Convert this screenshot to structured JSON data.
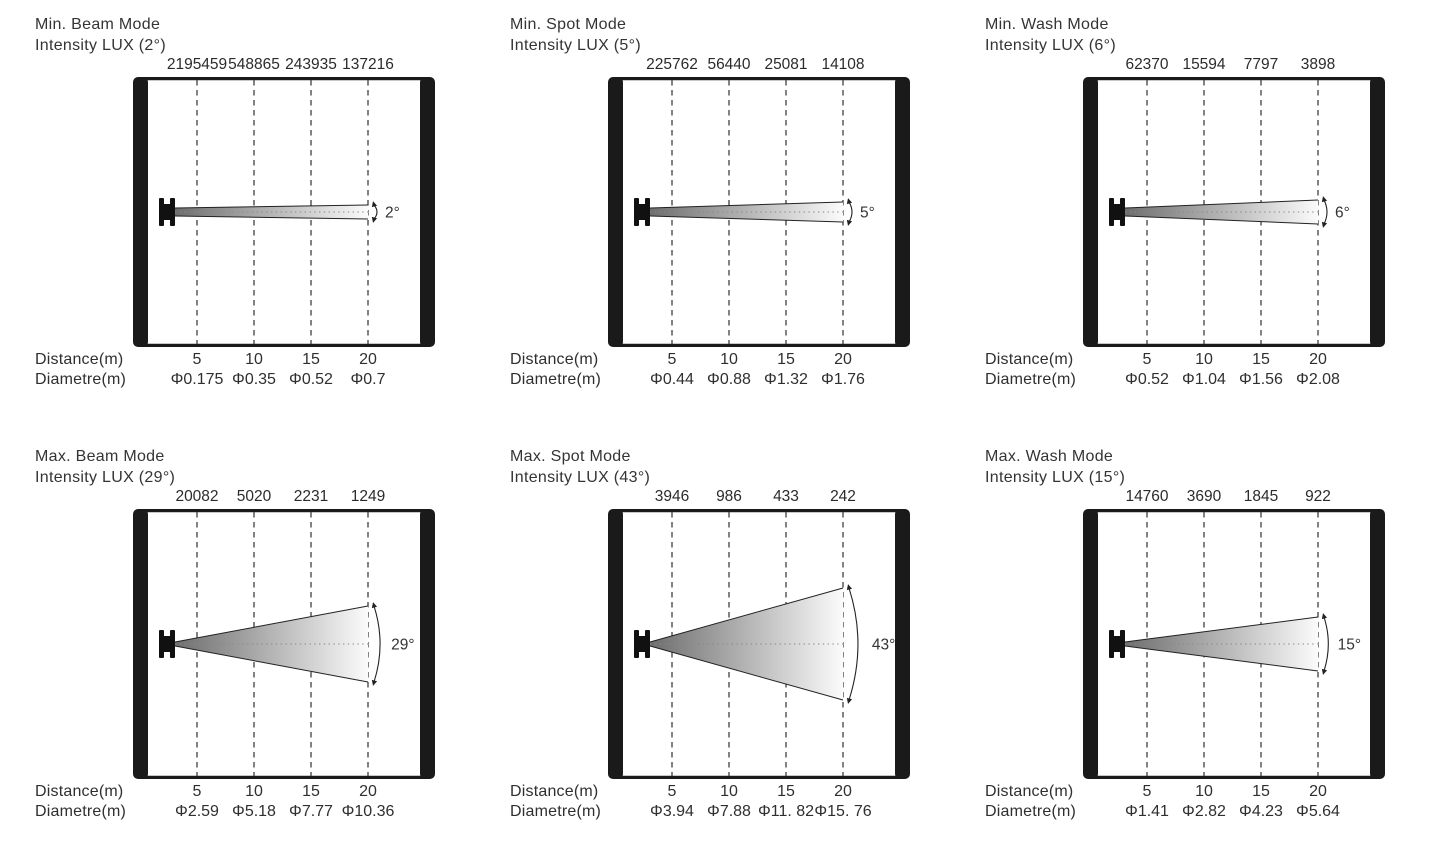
{
  "figure": {
    "description": "Photometric beam diagrams, 6 panels (min/max beam, spot, wash modes)",
    "labels": {
      "distance": "Distance(m)",
      "diametre": "Diametre(m)"
    },
    "colors": {
      "frame": "#1a1a1a",
      "text": "#343434",
      "tick_dash": "#3f3f3f",
      "beam_dark": "#6e6e6e",
      "beam_light": "#fbfbfb",
      "beam_edge": "#222222",
      "centerline": "#888888"
    }
  },
  "panels": [
    {
      "title_line1": "Min. Beam Mode",
      "title_line2": "Intensity LUX (2°)",
      "angle_label": "2°",
      "angle_deg": 2,
      "intensity": [
        "2195459",
        "548865",
        "243935",
        "137216"
      ],
      "distance": [
        "5",
        "10",
        "15",
        "20"
      ],
      "diametre": [
        "Φ0.175",
        "Φ0.35",
        "Φ0.52",
        "Φ0.7"
      ],
      "render": {
        "start_half_height": 4,
        "end_half_height": 7
      }
    },
    {
      "title_line1": "Min. Spot Mode",
      "title_line2": "Intensity LUX (5°)",
      "angle_label": "5°",
      "angle_deg": 5,
      "intensity": [
        "225762",
        "56440",
        "25081",
        "14108"
      ],
      "distance": [
        "5",
        "10",
        "15",
        "20"
      ],
      "diametre": [
        "Φ0.44",
        "Φ0.88",
        "Φ1.32",
        "Φ1.76"
      ],
      "render": {
        "start_half_height": 4,
        "end_half_height": 10
      }
    },
    {
      "title_line1": "Min. Wash Mode",
      "title_line2": "Intensity LUX (6°)",
      "angle_label": "6°",
      "angle_deg": 6,
      "intensity": [
        "62370",
        "15594",
        "7797",
        "3898"
      ],
      "distance": [
        "5",
        "10",
        "15",
        "20"
      ],
      "diametre": [
        "Φ0.52",
        "Φ1.04",
        "Φ1.56",
        "Φ2.08"
      ],
      "render": {
        "start_half_height": 4,
        "end_half_height": 12
      }
    },
    {
      "title_line1": "Max. Beam Mode",
      "title_line2": "Intensity LUX (29°)",
      "angle_label": "29°",
      "angle_deg": 29,
      "intensity": [
        "20082",
        "5020",
        "2231",
        "1249"
      ],
      "distance": [
        "5",
        "10",
        "15",
        "20"
      ],
      "diametre": [
        "Φ2.59",
        "Φ5.18",
        "Φ7.77",
        "Φ10.36"
      ],
      "render": {
        "start_half_height": 2,
        "end_half_height": 38
      }
    },
    {
      "title_line1": "Max. Spot Mode",
      "title_line2": "Intensity LUX (43°)",
      "angle_label": "43°",
      "angle_deg": 43,
      "intensity": [
        "3946",
        "986",
        "433",
        "242"
      ],
      "distance": [
        "5",
        "10",
        "15",
        "20"
      ],
      "diametre": [
        "Φ3.94",
        "Φ7.88",
        "Φ11. 82",
        "Φ15. 76"
      ],
      "render": {
        "start_half_height": 2,
        "end_half_height": 56
      }
    },
    {
      "title_line1": "Max. Wash Mode",
      "title_line2": "Intensity LUX (15°)",
      "angle_label": "15°",
      "angle_deg": 15,
      "intensity": [
        "14760",
        "3690",
        "1845",
        "922"
      ],
      "distance": [
        "5",
        "10",
        "15",
        "20"
      ],
      "diametre": [
        "Φ1.41",
        "Φ2.82",
        "Φ4.23",
        "Φ5.64"
      ],
      "render": {
        "start_half_height": 2,
        "end_half_height": 27
      }
    }
  ],
  "chart_data": [
    {
      "type": "table",
      "title": "Min. Beam Mode Intensity LUX (2°)",
      "x": [
        5,
        10,
        15,
        20
      ],
      "intensity_lux": [
        2195459,
        548865,
        243935,
        137216
      ],
      "diametre_m": [
        0.175,
        0.35,
        0.52,
        0.7
      ],
      "beam_angle_deg": 2
    },
    {
      "type": "table",
      "title": "Min. Spot Mode Intensity LUX (5°)",
      "x": [
        5,
        10,
        15,
        20
      ],
      "intensity_lux": [
        225762,
        56440,
        25081,
        14108
      ],
      "diametre_m": [
        0.44,
        0.88,
        1.32,
        1.76
      ],
      "beam_angle_deg": 5
    },
    {
      "type": "table",
      "title": "Min. Wash Mode Intensity LUX (6°)",
      "x": [
        5,
        10,
        15,
        20
      ],
      "intensity_lux": [
        62370,
        15594,
        7797,
        3898
      ],
      "diametre_m": [
        0.52,
        1.04,
        1.56,
        2.08
      ],
      "beam_angle_deg": 6
    },
    {
      "type": "table",
      "title": "Max. Beam Mode Intensity LUX (29°)",
      "x": [
        5,
        10,
        15,
        20
      ],
      "intensity_lux": [
        20082,
        5020,
        2231,
        1249
      ],
      "diametre_m": [
        2.59,
        5.18,
        7.77,
        10.36
      ],
      "beam_angle_deg": 29
    },
    {
      "type": "table",
      "title": "Max. Spot Mode Intensity LUX (43°)",
      "x": [
        5,
        10,
        15,
        20
      ],
      "intensity_lux": [
        3946,
        986,
        433,
        242
      ],
      "diametre_m": [
        3.94,
        7.88,
        11.82,
        15.76
      ],
      "beam_angle_deg": 43
    },
    {
      "type": "table",
      "title": "Max. Wash Mode Intensity LUX (15°)",
      "x": [
        5,
        10,
        15,
        20
      ],
      "intensity_lux": [
        14760,
        3690,
        1845,
        922
      ],
      "diametre_m": [
        1.41,
        2.82,
        4.23,
        5.64
      ],
      "beam_angle_deg": 15
    }
  ]
}
